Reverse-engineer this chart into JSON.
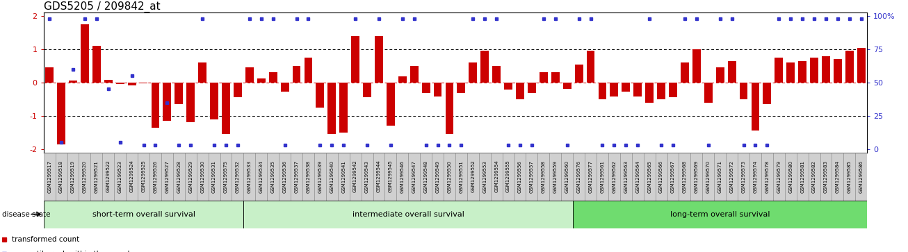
{
  "title": "GDS5205 / 209842_at",
  "samples": [
    "GSM1299517",
    "GSM1299518",
    "GSM1299519",
    "GSM1299520",
    "GSM1299521",
    "GSM1299522",
    "GSM1299523",
    "GSM1299524",
    "GSM1299525",
    "GSM1299526",
    "GSM1299527",
    "GSM1299528",
    "GSM1299529",
    "GSM1299530",
    "GSM1299531",
    "GSM1299575",
    "GSM1299532",
    "GSM1299533",
    "GSM1299534",
    "GSM1299535",
    "GSM1299536",
    "GSM1299537",
    "GSM1299538",
    "GSM1299539",
    "GSM1299540",
    "GSM1299541",
    "GSM1299542",
    "GSM1299543",
    "GSM1299544",
    "GSM1299545",
    "GSM1299546",
    "GSM1299547",
    "GSM1299548",
    "GSM1299549",
    "GSM1299550",
    "GSM1299551",
    "GSM1299552",
    "GSM1299553",
    "GSM1299554",
    "GSM1299555",
    "GSM1299556",
    "GSM1299557",
    "GSM1299558",
    "GSM1299559",
    "GSM1299560",
    "GSM1299576",
    "GSM1299577",
    "GSM1299561",
    "GSM1299562",
    "GSM1299563",
    "GSM1299564",
    "GSM1299565",
    "GSM1299566",
    "GSM1299567",
    "GSM1299568",
    "GSM1299569",
    "GSM1299570",
    "GSM1299571",
    "GSM1299572",
    "GSM1299573",
    "GSM1299574",
    "GSM1299578",
    "GSM1299579",
    "GSM1299580",
    "GSM1299581",
    "GSM1299582",
    "GSM1299583",
    "GSM1299584",
    "GSM1299585",
    "GSM1299586"
  ],
  "bar_values": [
    0.45,
    -1.85,
    0.05,
    1.75,
    1.1,
    0.08,
    -0.05,
    -0.08,
    -0.03,
    -1.35,
    -1.15,
    -0.65,
    -1.2,
    0.6,
    -1.1,
    -1.55,
    -0.45,
    0.45,
    0.12,
    0.3,
    -0.28,
    0.5,
    0.75,
    -0.75,
    -1.55,
    -1.5,
    1.4,
    -0.45,
    1.4,
    -1.3,
    0.18,
    0.5,
    -0.32,
    -0.42,
    -1.55,
    -0.32,
    0.6,
    0.95,
    0.5,
    -0.22,
    -0.5,
    -0.32,
    0.32,
    0.32,
    -0.18,
    0.55,
    0.95,
    -0.5,
    -0.42,
    -0.28,
    -0.42,
    -0.6,
    -0.5,
    -0.45,
    0.6,
    1.0,
    -0.6,
    0.45,
    0.65,
    -0.5,
    -1.45,
    -0.65,
    0.75,
    0.6,
    0.65,
    0.75,
    0.8,
    0.7,
    0.95,
    1.05
  ],
  "percentile_values": [
    98,
    5,
    60,
    98,
    98,
    45,
    5,
    55,
    3,
    3,
    35,
    3,
    3,
    98,
    3,
    3,
    3,
    98,
    98,
    98,
    3,
    98,
    98,
    3,
    3,
    3,
    98,
    3,
    98,
    3,
    98,
    98,
    3,
    3,
    3,
    3,
    98,
    98,
    98,
    3,
    3,
    3,
    98,
    98,
    3,
    98,
    98,
    3,
    3,
    3,
    3,
    98,
    3,
    3,
    98,
    98,
    3,
    98,
    98,
    3,
    3,
    3,
    98,
    98,
    98,
    98,
    98,
    98,
    98,
    98
  ],
  "group_boundaries": [
    0,
    17,
    45,
    70
  ],
  "group_labels": [
    "short-term overall survival",
    "intermediate overall survival",
    "long-term overall survival"
  ],
  "group_colors_light": "#c8f0c8",
  "group_colors_dark": "#6fdc6f",
  "bar_color": "#cc0000",
  "dot_color": "#3333cc",
  "ylim_left": [
    -2.1,
    2.1
  ],
  "yticks_left": [
    -2,
    -1,
    0,
    1,
    2
  ],
  "yticks_right": [
    0,
    25,
    50,
    75,
    100
  ],
  "hline_colors": {
    "neg1": "black",
    "0": "#cc0000",
    "1": "black"
  },
  "title_fontsize": 11,
  "label_box_color": "#d0d0d0",
  "label_box_edge": "#888888"
}
